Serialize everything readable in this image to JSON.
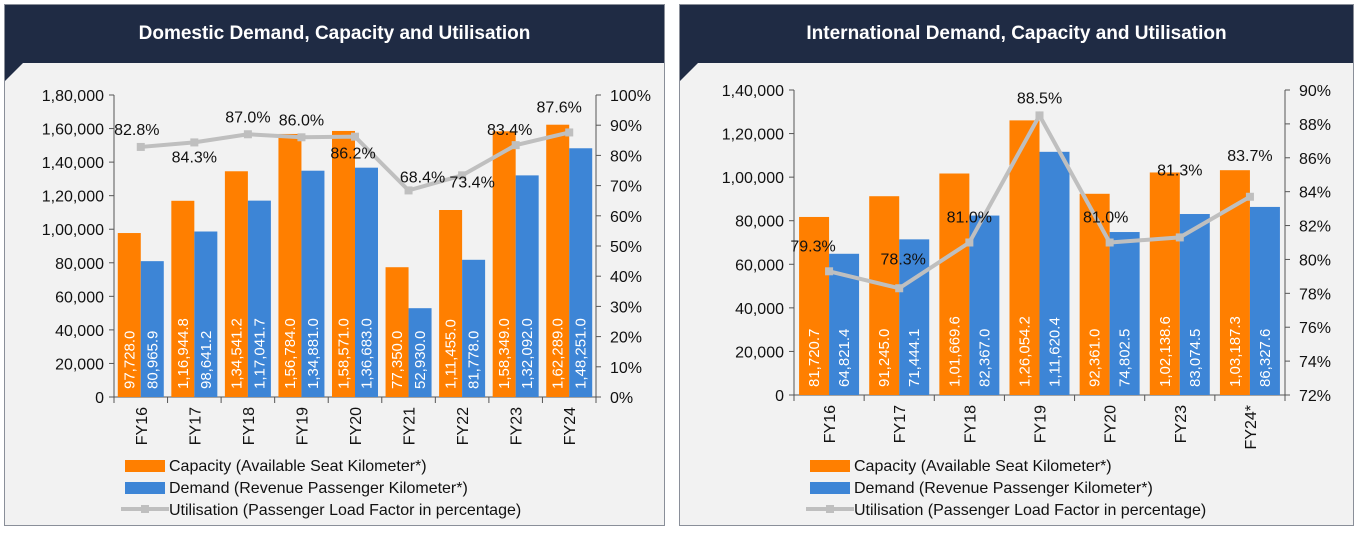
{
  "colors": {
    "capacity": "#ff7f00",
    "demand": "#3d85d6",
    "utilisation": "#bfbfbf",
    "header": "#1f2b44"
  },
  "chart_data": [
    {
      "type": "bar+line",
      "title": "Domestic Demand, Capacity and Utilisation",
      "categories": [
        "FY16",
        "FY17",
        "FY18",
        "FY19",
        "FY20",
        "FY21",
        "FY22",
        "FY23",
        "FY24"
      ],
      "series": [
        {
          "name": "Capacity (Available Seat Kilometer*)",
          "kind": "bar",
          "values": [
            97728.0,
            116944.8,
            134541.2,
            156784.0,
            158571.0,
            77350.0,
            111455.0,
            158349.0,
            162289.0
          ],
          "labels": [
            "97,728.0",
            "1,16,944.8",
            "1,34,541.2",
            "1,56,784.0",
            "1,58,571.0",
            "77,350.0",
            "1,11,455.0",
            "1,58,349.0",
            "1,62,289.0"
          ]
        },
        {
          "name": "Demand (Revenue Passenger Kilometer*)",
          "kind": "bar",
          "values": [
            80965.9,
            98641.2,
            117041.7,
            134881.0,
            136683.0,
            52930.0,
            81778.0,
            132092.0,
            148251.0
          ],
          "labels": [
            "80,965.9",
            "98,641.2",
            "1,17,041.7",
            "1,34,881.0",
            "1,36,683.0",
            "52,930.0",
            "81,778.0",
            "1,32,092.0",
            "1,48,251.0"
          ]
        },
        {
          "name": "Utilisation (Passenger Load Factor in percentage)",
          "kind": "line",
          "values": [
            82.8,
            84.3,
            87.0,
            86.0,
            86.2,
            68.4,
            73.4,
            83.4,
            87.6
          ],
          "labels": [
            "82.8%",
            "84.3%",
            "87.0%",
            "86.0%",
            "86.2%",
            "68.4%",
            "73.4%",
            "83.4%",
            "87.6%"
          ]
        }
      ],
      "y_left": {
        "min": 0,
        "max": 180000,
        "step": 20000,
        "ticks": [
          "0",
          "20,000",
          "40,000",
          "60,000",
          "80,000",
          "1,00,000",
          "1,20,000",
          "1,40,000",
          "1,60,000",
          "1,80,000"
        ]
      },
      "y_right": {
        "min": 0,
        "max": 100,
        "step": 10,
        "ticks": [
          "0%",
          "10%",
          "20%",
          "30%",
          "40%",
          "50%",
          "60%",
          "70%",
          "80%",
          "90%",
          "100%"
        ]
      },
      "legend": [
        "Capacity (Available Seat Kilometer*)",
        "Demand (Revenue Passenger Kilometer*)",
        "Utilisation (Passenger Load Factor in percentage)"
      ]
    },
    {
      "type": "bar+line",
      "title": "International Demand, Capacity and Utilisation",
      "categories": [
        "FY16",
        "FY17",
        "FY18",
        "FY19",
        "FY20",
        "FY23",
        "FY24*"
      ],
      "series": [
        {
          "name": "Capacity (Available Seat Kilometer*)",
          "kind": "bar",
          "values": [
            81720.7,
            91245.0,
            101669.6,
            126054.2,
            92361.0,
            102138.6,
            103187.3
          ],
          "labels": [
            "81,720.7",
            "91,245.0",
            "1,01,669.6",
            "1,26,054.2",
            "92,361.0",
            "1,02,138.6",
            "1,03,187.3"
          ]
        },
        {
          "name": "Demand (Revenue Passenger Kilometer*)",
          "kind": "bar",
          "values": [
            64821.4,
            71444.1,
            82367.0,
            111620.4,
            74802.5,
            83074.5,
            86327.6
          ],
          "labels": [
            "64,821.4",
            "71,444.1",
            "82,367.0",
            "1,11,620.4",
            "74,802.5",
            "83,074.5",
            "86,327.6"
          ]
        },
        {
          "name": "Utilisation (Passenger Load Factor in percentage)",
          "kind": "line",
          "values": [
            79.3,
            78.3,
            81.0,
            88.5,
            81.0,
            81.3,
            83.7
          ],
          "labels": [
            "79.3%",
            "78.3%",
            "81.0%",
            "88.5%",
            "81.0%",
            "81.3%",
            "83.7%"
          ]
        }
      ],
      "y_left": {
        "min": 0,
        "max": 140000,
        "step": 20000,
        "ticks": [
          "0",
          "20,000",
          "40,000",
          "60,000",
          "80,000",
          "1,00,000",
          "1,20,000",
          "1,40,000"
        ]
      },
      "y_right": {
        "min": 72,
        "max": 90,
        "step": 2,
        "ticks": [
          "72%",
          "74%",
          "76%",
          "78%",
          "80%",
          "82%",
          "84%",
          "86%",
          "88%",
          "90%"
        ]
      },
      "legend": [
        "Capacity (Available Seat Kilometer*)",
        "Demand (Revenue Passenger Kilometer*)",
        "Utilisation (Passenger Load Factor in percentage)"
      ]
    }
  ]
}
